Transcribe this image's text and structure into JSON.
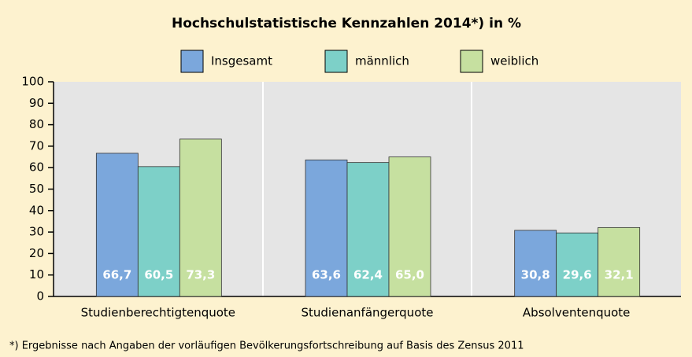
{
  "chart_data": {
    "type": "bar",
    "title": "Hochschulstatistische Kennzahlen 2014*) in %",
    "categories": [
      "Studienberechtigtenquote",
      "Studienanfängerquote",
      "Absolventenquote"
    ],
    "series": [
      {
        "name": "Insgesamt",
        "color": "#7ba7dc",
        "values": [
          66.7,
          63.6,
          30.8
        ],
        "value_labels": [
          "66,7",
          "63,6",
          "30,8"
        ]
      },
      {
        "name": "männlich",
        "color": "#7dd0c8",
        "values": [
          60.5,
          62.4,
          29.6
        ],
        "value_labels": [
          "60,5",
          "62,4",
          "29,6"
        ]
      },
      {
        "name": "weiblich",
        "color": "#c6e0a0",
        "values": [
          73.3,
          65.0,
          32.1
        ],
        "value_labels": [
          "73,3",
          "65,0",
          "32,1"
        ]
      }
    ],
    "ylim": [
      0,
      100
    ],
    "yticks": [
      0,
      10,
      20,
      30,
      40,
      50,
      60,
      70,
      80,
      90,
      100
    ],
    "footnote": "*) Ergebnisse nach Angaben der vorläufigen Bevölkerungsfortschreibung auf Basis des Zensus 2011"
  }
}
